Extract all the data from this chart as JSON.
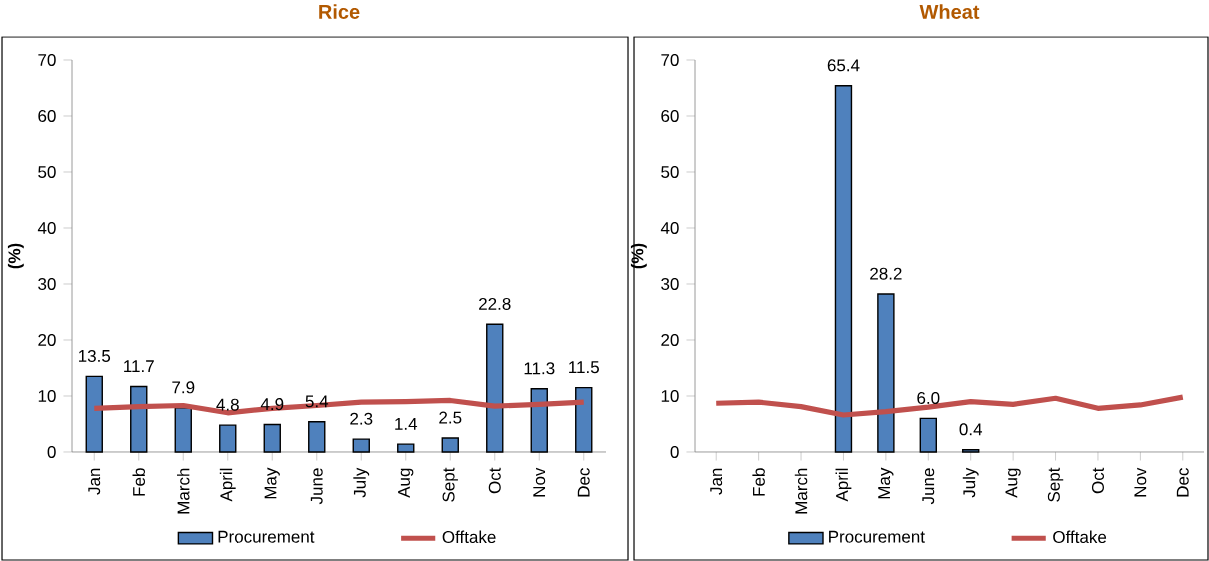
{
  "chart_data": [
    {
      "type": "bar",
      "title": "Rice",
      "ylabel": "(%)",
      "categories": [
        "Jan",
        "Feb",
        "March",
        "April",
        "May",
        "June",
        "July",
        "Aug",
        "Sept",
        "Oct",
        "Nov",
        "Dec"
      ],
      "ylim": [
        0,
        70
      ],
      "yticks": [
        0,
        10,
        20,
        30,
        40,
        50,
        60,
        70
      ],
      "legend": "bottom",
      "series": [
        {
          "name": "Procurement",
          "color": "#4f81bd",
          "values": [
            13.5,
            11.7,
            7.9,
            4.8,
            4.9,
            5.4,
            2.3,
            1.4,
            2.5,
            22.8,
            11.3,
            11.5
          ],
          "value_labels": [
            "13.5",
            "11.7",
            "7.9",
            "4.8",
            "4.9",
            "5.4",
            "2.3",
            "1.4",
            "2.5",
            "22.8",
            "11.3",
            "11.5"
          ]
        },
        {
          "name": "Offtake",
          "type": "line",
          "color": "#c0504d",
          "values": [
            7.8,
            8.1,
            8.3,
            7.0,
            7.8,
            8.3,
            8.9,
            9.0,
            9.2,
            8.2,
            8.5,
            8.9
          ]
        }
      ]
    },
    {
      "type": "bar",
      "title": "Wheat",
      "ylabel": "(%)",
      "categories": [
        "Jan",
        "Feb",
        "March",
        "April",
        "May",
        "June",
        "July",
        "Aug",
        "Sept",
        "Oct",
        "Nov",
        "Dec"
      ],
      "ylim": [
        0,
        70
      ],
      "yticks": [
        0,
        10,
        20,
        30,
        40,
        50,
        60,
        70
      ],
      "legend": "bottom",
      "series": [
        {
          "name": "Procurement",
          "color": "#4f81bd",
          "values": [
            null,
            null,
            null,
            65.4,
            28.2,
            6.0,
            0.4,
            null,
            null,
            null,
            null,
            null
          ],
          "value_labels": [
            null,
            null,
            null,
            "65.4",
            "28.2",
            "6.0",
            "0.4",
            null,
            null,
            null,
            null,
            null
          ]
        },
        {
          "name": "Offtake",
          "type": "line",
          "color": "#c0504d",
          "values": [
            8.7,
            8.9,
            8.1,
            6.6,
            7.2,
            8.0,
            9.0,
            8.5,
            9.6,
            7.8,
            8.4,
            9.8
          ]
        }
      ]
    }
  ]
}
